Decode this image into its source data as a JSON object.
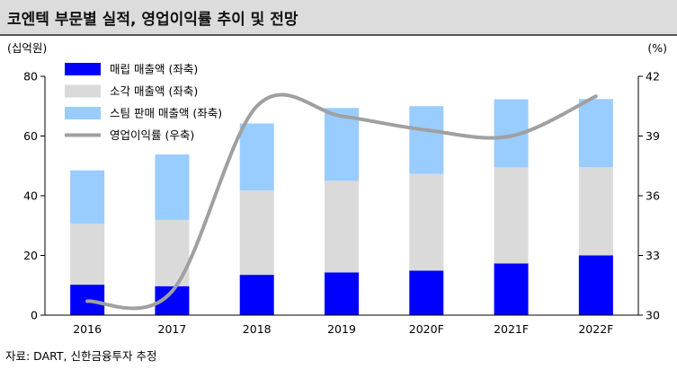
{
  "title": "코엔텍 부문별 실적, 영업이익률 추이 및 전망",
  "source": "자료: DART, 신한금융투자 추정",
  "chart_data": {
    "type": "bar",
    "stacked": true,
    "categories": [
      "2016",
      "2017",
      "2018",
      "2019",
      "2020F",
      "2021F",
      "2022F"
    ],
    "left_axis": {
      "unit": "(십억원)",
      "min": 0,
      "max": 80,
      "ticks": [
        "0",
        "20",
        "40",
        "60",
        "80"
      ]
    },
    "right_axis": {
      "unit": "(%)",
      "min": 30,
      "max": 42,
      "ticks": [
        "30",
        "33",
        "36",
        "39",
        "42"
      ]
    },
    "series": [
      {
        "name": "매립 매출액 (좌축)",
        "color": "#0000ff",
        "values": [
          10.2,
          9.7,
          13.5,
          14.3,
          14.9,
          17.3,
          20.0
        ]
      },
      {
        "name": "소각 매출액 (좌축)",
        "color": "#dadada",
        "values": [
          20.4,
          22.2,
          28.3,
          30.7,
          32.4,
          32.2,
          29.6
        ]
      },
      {
        "name": "스팀 판매 매출액 (좌축)",
        "color": "#99ccff",
        "values": [
          17.9,
          21.9,
          22.4,
          24.4,
          22.7,
          22.8,
          22.8
        ]
      }
    ],
    "line": {
      "name": "영업이익률 (우축)",
      "color": "#a0a0a0",
      "values": [
        30.7,
        31.2,
        40.5,
        40.0,
        39.3,
        39.0,
        41.0
      ]
    },
    "legend_position": "top-left",
    "grid": false
  }
}
